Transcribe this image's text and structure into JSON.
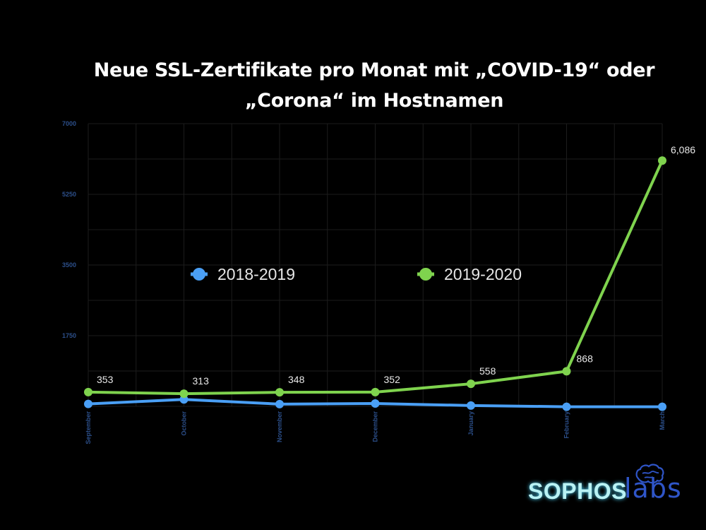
{
  "chart_data": {
    "type": "line",
    "title_lines": [
      "Neue SSL-Zertifikate pro Monat mit „COVID-19“ oder",
      "„Corona“ im Hostnamen"
    ],
    "categories": [
      "September",
      "October",
      "November",
      "December",
      "January",
      "February",
      "March"
    ],
    "y_ticks": [
      "1750",
      "3500",
      "5250",
      "7000"
    ],
    "ylim": [
      0,
      7000
    ],
    "grid": true,
    "legend_placement": "center",
    "series": [
      {
        "name": "2018-2019",
        "color": "#4a9ff5",
        "values": [
          60,
          170,
          55,
          70,
          20,
          -10,
          -10
        ]
      },
      {
        "name": "2019-2020",
        "color": "#7fd34e",
        "values": [
          353,
          313,
          348,
          352,
          558,
          868,
          6086
        ],
        "labels": [
          "353",
          "313",
          "348",
          "352",
          "558",
          "868",
          "6,086"
        ]
      }
    ]
  },
  "logo": {
    "part1": "SOPHOS",
    "part2": "labs"
  }
}
